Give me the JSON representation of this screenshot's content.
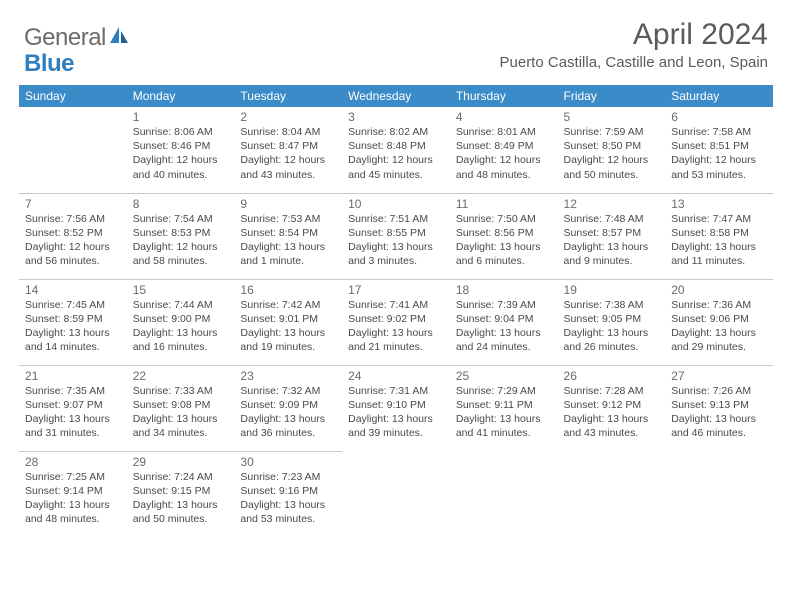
{
  "logo": {
    "text1": "General",
    "text2": "Blue"
  },
  "header": {
    "month_title": "April 2024",
    "location": "Puerto Castilla, Castille and Leon, Spain"
  },
  "colors": {
    "header_bg": "#3b8bc9",
    "header_text": "#ffffff",
    "cell_border": "#c9c9c9",
    "daynum": "#6a6a6a",
    "body_text": "#4a4a4a",
    "title_text": "#5a5a5a"
  },
  "weekdays": [
    "Sunday",
    "Monday",
    "Tuesday",
    "Wednesday",
    "Thursday",
    "Friday",
    "Saturday"
  ],
  "weeks": [
    [
      null,
      {
        "d": "1",
        "sr": "Sunrise: 8:06 AM",
        "ss": "Sunset: 8:46 PM",
        "dl1": "Daylight: 12 hours",
        "dl2": "and 40 minutes."
      },
      {
        "d": "2",
        "sr": "Sunrise: 8:04 AM",
        "ss": "Sunset: 8:47 PM",
        "dl1": "Daylight: 12 hours",
        "dl2": "and 43 minutes."
      },
      {
        "d": "3",
        "sr": "Sunrise: 8:02 AM",
        "ss": "Sunset: 8:48 PM",
        "dl1": "Daylight: 12 hours",
        "dl2": "and 45 minutes."
      },
      {
        "d": "4",
        "sr": "Sunrise: 8:01 AM",
        "ss": "Sunset: 8:49 PM",
        "dl1": "Daylight: 12 hours",
        "dl2": "and 48 minutes."
      },
      {
        "d": "5",
        "sr": "Sunrise: 7:59 AM",
        "ss": "Sunset: 8:50 PM",
        "dl1": "Daylight: 12 hours",
        "dl2": "and 50 minutes."
      },
      {
        "d": "6",
        "sr": "Sunrise: 7:58 AM",
        "ss": "Sunset: 8:51 PM",
        "dl1": "Daylight: 12 hours",
        "dl2": "and 53 minutes."
      }
    ],
    [
      {
        "d": "7",
        "sr": "Sunrise: 7:56 AM",
        "ss": "Sunset: 8:52 PM",
        "dl1": "Daylight: 12 hours",
        "dl2": "and 56 minutes."
      },
      {
        "d": "8",
        "sr": "Sunrise: 7:54 AM",
        "ss": "Sunset: 8:53 PM",
        "dl1": "Daylight: 12 hours",
        "dl2": "and 58 minutes."
      },
      {
        "d": "9",
        "sr": "Sunrise: 7:53 AM",
        "ss": "Sunset: 8:54 PM",
        "dl1": "Daylight: 13 hours",
        "dl2": "and 1 minute."
      },
      {
        "d": "10",
        "sr": "Sunrise: 7:51 AM",
        "ss": "Sunset: 8:55 PM",
        "dl1": "Daylight: 13 hours",
        "dl2": "and 3 minutes."
      },
      {
        "d": "11",
        "sr": "Sunrise: 7:50 AM",
        "ss": "Sunset: 8:56 PM",
        "dl1": "Daylight: 13 hours",
        "dl2": "and 6 minutes."
      },
      {
        "d": "12",
        "sr": "Sunrise: 7:48 AM",
        "ss": "Sunset: 8:57 PM",
        "dl1": "Daylight: 13 hours",
        "dl2": "and 9 minutes."
      },
      {
        "d": "13",
        "sr": "Sunrise: 7:47 AM",
        "ss": "Sunset: 8:58 PM",
        "dl1": "Daylight: 13 hours",
        "dl2": "and 11 minutes."
      }
    ],
    [
      {
        "d": "14",
        "sr": "Sunrise: 7:45 AM",
        "ss": "Sunset: 8:59 PM",
        "dl1": "Daylight: 13 hours",
        "dl2": "and 14 minutes."
      },
      {
        "d": "15",
        "sr": "Sunrise: 7:44 AM",
        "ss": "Sunset: 9:00 PM",
        "dl1": "Daylight: 13 hours",
        "dl2": "and 16 minutes."
      },
      {
        "d": "16",
        "sr": "Sunrise: 7:42 AM",
        "ss": "Sunset: 9:01 PM",
        "dl1": "Daylight: 13 hours",
        "dl2": "and 19 minutes."
      },
      {
        "d": "17",
        "sr": "Sunrise: 7:41 AM",
        "ss": "Sunset: 9:02 PM",
        "dl1": "Daylight: 13 hours",
        "dl2": "and 21 minutes."
      },
      {
        "d": "18",
        "sr": "Sunrise: 7:39 AM",
        "ss": "Sunset: 9:04 PM",
        "dl1": "Daylight: 13 hours",
        "dl2": "and 24 minutes."
      },
      {
        "d": "19",
        "sr": "Sunrise: 7:38 AM",
        "ss": "Sunset: 9:05 PM",
        "dl1": "Daylight: 13 hours",
        "dl2": "and 26 minutes."
      },
      {
        "d": "20",
        "sr": "Sunrise: 7:36 AM",
        "ss": "Sunset: 9:06 PM",
        "dl1": "Daylight: 13 hours",
        "dl2": "and 29 minutes."
      }
    ],
    [
      {
        "d": "21",
        "sr": "Sunrise: 7:35 AM",
        "ss": "Sunset: 9:07 PM",
        "dl1": "Daylight: 13 hours",
        "dl2": "and 31 minutes."
      },
      {
        "d": "22",
        "sr": "Sunrise: 7:33 AM",
        "ss": "Sunset: 9:08 PM",
        "dl1": "Daylight: 13 hours",
        "dl2": "and 34 minutes."
      },
      {
        "d": "23",
        "sr": "Sunrise: 7:32 AM",
        "ss": "Sunset: 9:09 PM",
        "dl1": "Daylight: 13 hours",
        "dl2": "and 36 minutes."
      },
      {
        "d": "24",
        "sr": "Sunrise: 7:31 AM",
        "ss": "Sunset: 9:10 PM",
        "dl1": "Daylight: 13 hours",
        "dl2": "and 39 minutes."
      },
      {
        "d": "25",
        "sr": "Sunrise: 7:29 AM",
        "ss": "Sunset: 9:11 PM",
        "dl1": "Daylight: 13 hours",
        "dl2": "and 41 minutes."
      },
      {
        "d": "26",
        "sr": "Sunrise: 7:28 AM",
        "ss": "Sunset: 9:12 PM",
        "dl1": "Daylight: 13 hours",
        "dl2": "and 43 minutes."
      },
      {
        "d": "27",
        "sr": "Sunrise: 7:26 AM",
        "ss": "Sunset: 9:13 PM",
        "dl1": "Daylight: 13 hours",
        "dl2": "and 46 minutes."
      }
    ],
    [
      {
        "d": "28",
        "sr": "Sunrise: 7:25 AM",
        "ss": "Sunset: 9:14 PM",
        "dl1": "Daylight: 13 hours",
        "dl2": "and 48 minutes."
      },
      {
        "d": "29",
        "sr": "Sunrise: 7:24 AM",
        "ss": "Sunset: 9:15 PM",
        "dl1": "Daylight: 13 hours",
        "dl2": "and 50 minutes."
      },
      {
        "d": "30",
        "sr": "Sunrise: 7:23 AM",
        "ss": "Sunset: 9:16 PM",
        "dl1": "Daylight: 13 hours",
        "dl2": "and 53 minutes."
      },
      null,
      null,
      null,
      null
    ]
  ]
}
